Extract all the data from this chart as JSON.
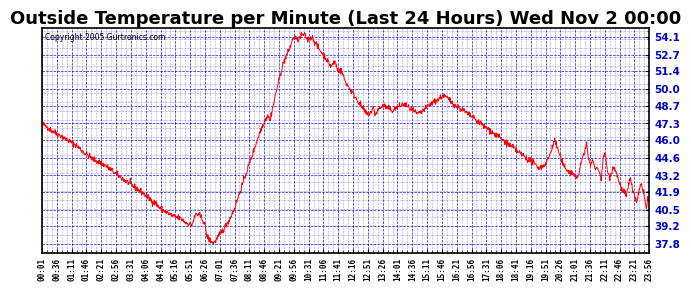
{
  "title": "Outside Temperature per Minute (Last 24 Hours) Wed Nov 2 00:00",
  "copyright": "Copyright 2005 Gurtronics.com",
  "yticks": [
    37.8,
    39.2,
    40.5,
    41.9,
    43.2,
    44.6,
    46.0,
    47.3,
    48.7,
    50.0,
    51.4,
    52.7,
    54.1
  ],
  "ymin": 37.1,
  "ymax": 54.8,
  "line_color": "#ff0000",
  "background_color": "#ffffff",
  "plot_bg_color": "#ffffff",
  "grid_color": "#0000cc",
  "border_color": "#000000",
  "title_fontsize": 13,
  "total_minutes": 1440,
  "x_labels": [
    "00:01",
    "00:36",
    "01:11",
    "01:46",
    "02:21",
    "02:56",
    "03:31",
    "04:06",
    "04:41",
    "05:16",
    "05:51",
    "06:26",
    "07:01",
    "07:36",
    "08:11",
    "08:46",
    "09:21",
    "09:56",
    "10:31",
    "11:06",
    "11:41",
    "12:16",
    "12:51",
    "13:26",
    "14:01",
    "14:36",
    "15:11",
    "15:46",
    "16:21",
    "16:56",
    "17:31",
    "18:06",
    "18:41",
    "19:16",
    "19:51",
    "20:26",
    "21:01",
    "21:36",
    "22:11",
    "22:46",
    "23:21",
    "23:56"
  ],
  "control_points": [
    [
      0,
      47.3
    ],
    [
      20,
      46.8
    ],
    [
      40,
      46.4
    ],
    [
      60,
      46.0
    ],
    [
      80,
      45.6
    ],
    [
      100,
      45.0
    ],
    [
      120,
      44.5
    ],
    [
      150,
      44.0
    ],
    [
      180,
      43.2
    ],
    [
      210,
      42.5
    ],
    [
      240,
      41.8
    ],
    [
      260,
      41.2
    ],
    [
      270,
      41.0
    ],
    [
      280,
      40.6
    ],
    [
      295,
      40.3
    ],
    [
      310,
      40.0
    ],
    [
      330,
      39.8
    ],
    [
      340,
      39.5
    ],
    [
      355,
      39.3
    ],
    [
      365,
      40.2
    ],
    [
      375,
      40.0
    ],
    [
      385,
      39.5
    ],
    [
      390,
      38.5
    ],
    [
      395,
      38.2
    ],
    [
      400,
      38.1
    ],
    [
      405,
      37.9
    ],
    [
      410,
      38.0
    ],
    [
      420,
      38.5
    ],
    [
      435,
      39.2
    ],
    [
      445,
      39.8
    ],
    [
      455,
      40.5
    ],
    [
      465,
      41.5
    ],
    [
      475,
      42.5
    ],
    [
      485,
      43.5
    ],
    [
      495,
      44.5
    ],
    [
      505,
      45.5
    ],
    [
      515,
      46.5
    ],
    [
      525,
      47.3
    ],
    [
      535,
      48.0
    ],
    [
      540,
      47.5
    ],
    [
      545,
      48.3
    ],
    [
      550,
      49.0
    ],
    [
      555,
      49.8
    ],
    [
      560,
      50.5
    ],
    [
      565,
      51.2
    ],
    [
      570,
      51.8
    ],
    [
      575,
      52.3
    ],
    [
      580,
      52.7
    ],
    [
      585,
      53.0
    ],
    [
      590,
      53.5
    ],
    [
      595,
      54.0
    ],
    [
      600,
      54.1
    ],
    [
      605,
      53.8
    ],
    [
      610,
      54.0
    ],
    [
      615,
      54.2
    ],
    [
      620,
      54.3
    ],
    [
      625,
      54.1
    ],
    [
      630,
      53.9
    ],
    [
      635,
      54.0
    ],
    [
      640,
      54.1
    ],
    [
      645,
      53.8
    ],
    [
      650,
      53.5
    ],
    [
      655,
      53.2
    ],
    [
      660,
      53.0
    ],
    [
      665,
      52.8
    ],
    [
      670,
      52.6
    ],
    [
      675,
      52.3
    ],
    [
      680,
      52.0
    ],
    [
      685,
      51.8
    ],
    [
      690,
      52.0
    ],
    [
      695,
      52.2
    ],
    [
      700,
      51.5
    ],
    [
      710,
      51.4
    ],
    [
      720,
      50.5
    ],
    [
      730,
      50.0
    ],
    [
      740,
      49.5
    ],
    [
      750,
      49.0
    ],
    [
      760,
      48.5
    ],
    [
      770,
      48.0
    ],
    [
      780,
      48.2
    ],
    [
      785,
      48.5
    ],
    [
      790,
      48.0
    ],
    [
      795,
      48.3
    ],
    [
      800,
      48.5
    ],
    [
      810,
      48.7
    ],
    [
      820,
      48.5
    ],
    [
      830,
      48.3
    ],
    [
      840,
      48.5
    ],
    [
      850,
      48.7
    ],
    [
      860,
      48.8
    ],
    [
      870,
      48.5
    ],
    [
      880,
      48.3
    ],
    [
      890,
      48.0
    ],
    [
      900,
      48.2
    ],
    [
      910,
      48.5
    ],
    [
      920,
      48.8
    ],
    [
      930,
      49.0
    ],
    [
      940,
      49.2
    ],
    [
      950,
      49.5
    ],
    [
      960,
      49.3
    ],
    [
      970,
      49.0
    ],
    [
      980,
      48.7
    ],
    [
      990,
      48.5
    ],
    [
      1000,
      48.3
    ],
    [
      1010,
      48.0
    ],
    [
      1020,
      47.8
    ],
    [
      1030,
      47.5
    ],
    [
      1040,
      47.3
    ],
    [
      1050,
      47.0
    ],
    [
      1060,
      46.8
    ],
    [
      1070,
      46.5
    ],
    [
      1080,
      46.3
    ],
    [
      1090,
      46.0
    ],
    [
      1100,
      45.8
    ],
    [
      1110,
      45.5
    ],
    [
      1120,
      45.3
    ],
    [
      1130,
      45.0
    ],
    [
      1140,
      44.8
    ],
    [
      1150,
      44.5
    ],
    [
      1160,
      44.3
    ],
    [
      1170,
      44.0
    ],
    [
      1180,
      43.8
    ],
    [
      1190,
      44.0
    ],
    [
      1200,
      44.5
    ],
    [
      1205,
      45.0
    ],
    [
      1210,
      45.5
    ],
    [
      1215,
      46.0
    ],
    [
      1220,
      45.5
    ],
    [
      1225,
      45.0
    ],
    [
      1230,
      44.5
    ],
    [
      1235,
      44.0
    ],
    [
      1240,
      43.8
    ],
    [
      1250,
      43.5
    ],
    [
      1260,
      43.3
    ],
    [
      1270,
      43.0
    ],
    [
      1280,
      44.5
    ],
    [
      1285,
      45.0
    ],
    [
      1290,
      45.8
    ],
    [
      1295,
      44.5
    ],
    [
      1300,
      44.0
    ],
    [
      1305,
      44.5
    ],
    [
      1308,
      44.0
    ],
    [
      1312,
      43.5
    ],
    [
      1315,
      44.0
    ],
    [
      1320,
      43.5
    ],
    [
      1325,
      43.0
    ],
    [
      1330,
      44.5
    ],
    [
      1335,
      45.0
    ],
    [
      1340,
      43.5
    ],
    [
      1345,
      43.0
    ],
    [
      1350,
      43.5
    ],
    [
      1355,
      44.0
    ],
    [
      1360,
      43.5
    ],
    [
      1365,
      43.0
    ],
    [
      1370,
      42.5
    ],
    [
      1375,
      42.0
    ],
    [
      1380,
      41.9
    ],
    [
      1385,
      41.5
    ],
    [
      1390,
      42.5
    ],
    [
      1395,
      43.0
    ],
    [
      1400,
      42.0
    ],
    [
      1405,
      41.5
    ],
    [
      1410,
      41.0
    ],
    [
      1415,
      42.0
    ],
    [
      1420,
      42.5
    ],
    [
      1425,
      42.0
    ],
    [
      1428,
      41.5
    ],
    [
      1430,
      41.0
    ],
    [
      1432,
      40.5
    ],
    [
      1434,
      41.0
    ],
    [
      1435,
      41.5
    ],
    [
      1437,
      41.0
    ],
    [
      1439,
      41.3
    ]
  ]
}
